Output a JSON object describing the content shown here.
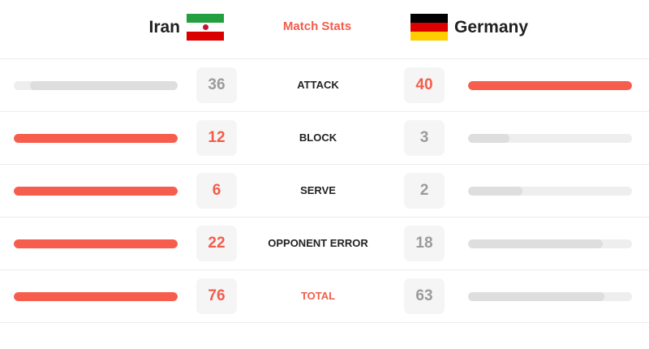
{
  "header": {
    "home_team": "Iran",
    "away_team": "Germany",
    "title": "Match Stats",
    "home_flag": "iran-flag",
    "away_flag": "germany-flag"
  },
  "colors": {
    "accent": "#f25d4b",
    "bar_leader": "#f75d4c",
    "bar_trailer": "#dedede",
    "bar_track": "#eeeeee",
    "value_trailer": "#9b9b9b"
  },
  "stats": [
    {
      "label": "ATTACK",
      "home": "36",
      "away": "40",
      "home_fill": 0.9,
      "away_fill": 1.0,
      "leader": "away"
    },
    {
      "label": "BLOCK",
      "home": "12",
      "away": "3",
      "home_fill": 1.0,
      "away_fill": 0.25,
      "leader": "home"
    },
    {
      "label": "SERVE",
      "home": "6",
      "away": "2",
      "home_fill": 1.0,
      "away_fill": 0.33,
      "leader": "home"
    },
    {
      "label": "OPPONENT ERROR",
      "home": "22",
      "away": "18",
      "home_fill": 1.0,
      "away_fill": 0.82,
      "leader": "home"
    },
    {
      "label": "TOTAL",
      "home": "76",
      "away": "63",
      "home_fill": 1.0,
      "away_fill": 0.83,
      "leader": "home",
      "accent_label": true
    }
  ]
}
